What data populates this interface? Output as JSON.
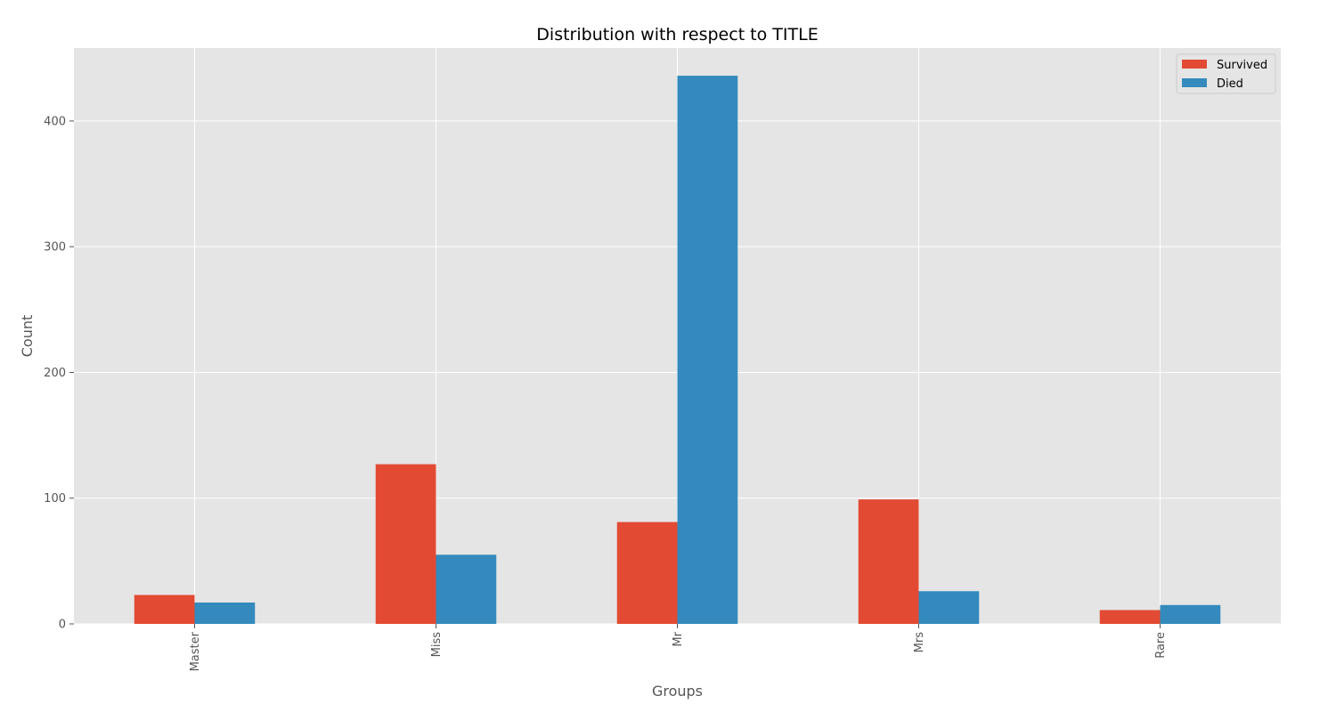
{
  "chart_data": {
    "type": "bar",
    "title": "Distribution with respect to TITLE",
    "xlabel": "Groups",
    "ylabel": "Count",
    "categories": [
      "Master",
      "Miss",
      "Mr",
      "Mrs",
      "Rare"
    ],
    "series": [
      {
        "name": "Survived",
        "color": "#E24A33",
        "values": [
          23,
          127,
          81,
          99,
          11
        ]
      },
      {
        "name": "Died",
        "color": "#348ABD",
        "values": [
          17,
          55,
          436,
          26,
          15
        ]
      }
    ],
    "ylim": [
      0,
      458
    ],
    "yticks": [
      0,
      100,
      200,
      300,
      400
    ],
    "grid": true,
    "legend_position": "top-right",
    "plot_background": "#E5E5E5",
    "grid_color": "#FFFFFF"
  }
}
